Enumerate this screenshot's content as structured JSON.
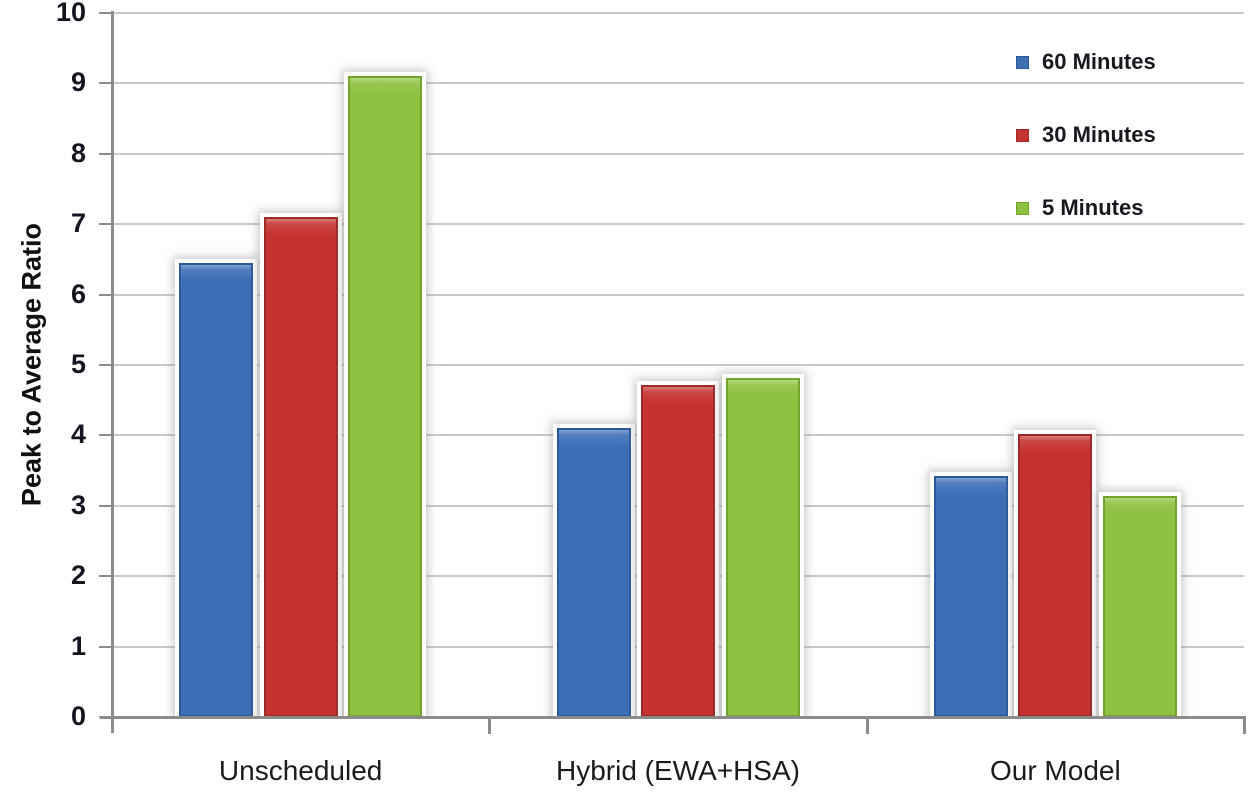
{
  "chart_data": {
    "type": "bar",
    "title": "",
    "xlabel": "",
    "ylabel": "Peak to Average Ratio",
    "ylim": [
      0,
      10
    ],
    "ytick_step": 1,
    "grid": true,
    "legend_position": "top-right",
    "categories": [
      "Unscheduled",
      "Hybrid (EWA+HSA)",
      "Our Model"
    ],
    "series": [
      {
        "name": "60 Minutes",
        "color": "#3d6fb7",
        "border_color": "#2b5a99",
        "values": [
          6.45,
          4.1,
          3.42
        ]
      },
      {
        "name": "30 Minutes",
        "color": "#c53331",
        "border_color": "#9e2826",
        "values": [
          7.1,
          4.72,
          4.02
        ]
      },
      {
        "name": "5 Minutes",
        "color": "#8ec140",
        "border_color": "#72a52e",
        "values": [
          9.1,
          4.82,
          3.14
        ]
      }
    ]
  },
  "axis": {
    "ytick_labels": [
      "0",
      "1",
      "2",
      "3",
      "4",
      "5",
      "6",
      "7",
      "8",
      "9",
      "10"
    ]
  }
}
